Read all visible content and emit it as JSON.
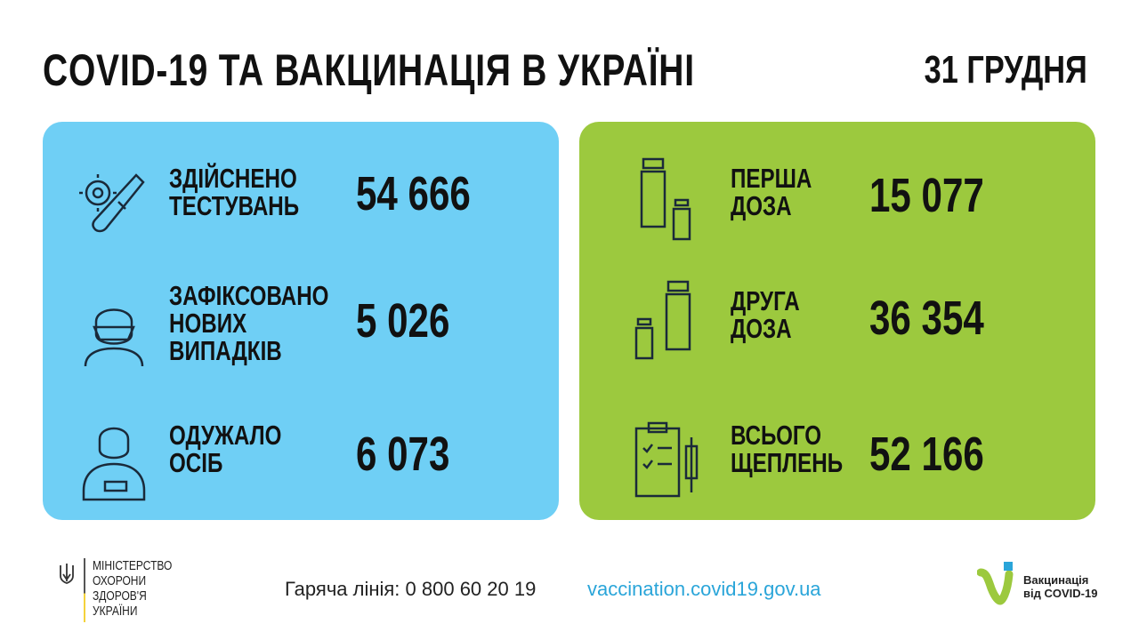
{
  "header": {
    "title": "COVID-19 ТА ВАКЦИНАЦІЯ В УКРАЇНІ",
    "date": "31 ГРУДНЯ"
  },
  "left_panel": {
    "color": "#6fcff5",
    "items": [
      {
        "icon": "test-tube-virus-icon",
        "label": [
          "ЗДІЙСНЕНО",
          "ТЕСТУВАНЬ"
        ],
        "value": "54 666"
      },
      {
        "icon": "masked-person-icon",
        "label": [
          "ЗАФІКСОВАНО",
          "НОВИХ",
          "ВИПАДКІВ"
        ],
        "value": "5 026"
      },
      {
        "icon": "recovered-person-icon",
        "label": [
          "ОДУЖАЛО",
          "ОСІБ"
        ],
        "value": "6 073"
      }
    ]
  },
  "right_panel": {
    "color": "#9cc93e",
    "items": [
      {
        "icon": "vaccine-vials-icon",
        "label": [
          "ПЕРША",
          "ДОЗА"
        ],
        "value": "15 077"
      },
      {
        "icon": "vaccine-vials-icon",
        "label": [
          "ДРУГА",
          "ДОЗА"
        ],
        "value": "36 354"
      },
      {
        "icon": "clipboard-syringe-icon",
        "label": [
          "ВСЬОГО",
          "ЩЕПЛЕНЬ"
        ],
        "value": "52 166"
      }
    ]
  },
  "footer": {
    "ministry": [
      "МІНІСТЕРСТВО",
      "ОХОРОНИ",
      "ЗДОРОВ'Я",
      "УКРАЇНИ"
    ],
    "hotline": "Гаряча лінія: 0 800 60 20 19",
    "website": "vaccination.covid19.gov.ua",
    "logo_text": [
      "Вакцинація",
      "від COVID-19"
    ]
  }
}
